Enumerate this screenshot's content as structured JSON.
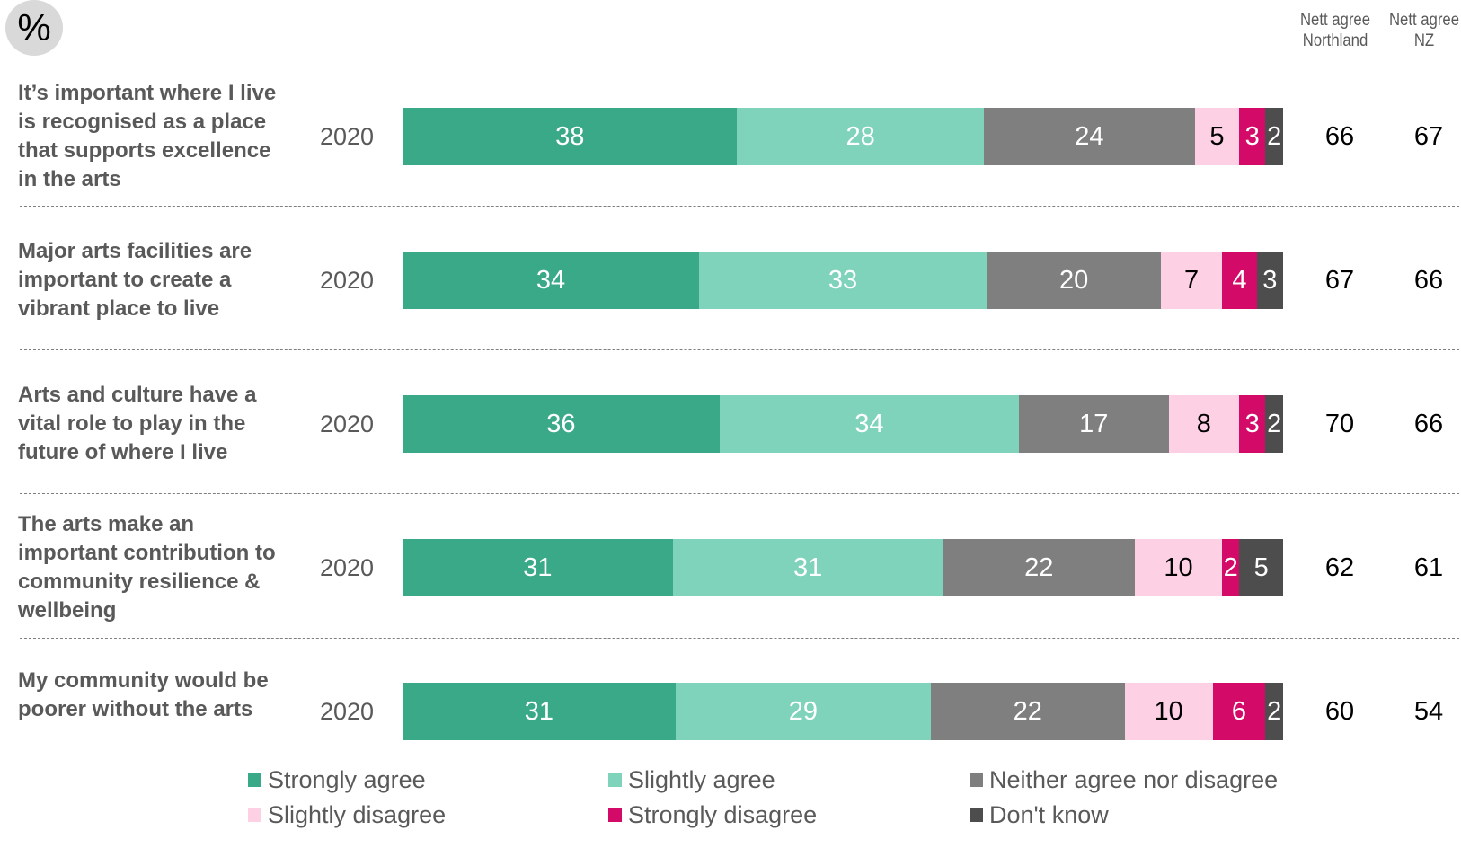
{
  "unit_badge": "%",
  "column_headers": {
    "northland": [
      "Nett agree",
      "Northland"
    ],
    "nz": [
      "Nett agree",
      "NZ"
    ]
  },
  "legend": [
    {
      "label": "Strongly agree",
      "color": "#3aa987"
    },
    {
      "label": "Slightly agree",
      "color": "#7fd3bb"
    },
    {
      "label": "Neither agree nor disagree",
      "color": "#7f7f7f"
    },
    {
      "label": "Slightly disagree",
      "color": "#fdd0e4"
    },
    {
      "label": "Strongly disagree",
      "color": "#d40a68"
    },
    {
      "label": "Don't know",
      "color": "#4d4d4d"
    }
  ],
  "chart_data": {
    "type": "bar",
    "orientation": "horizontal",
    "stacked": true,
    "unit": "%",
    "categories": [
      "It’s important where I live is recognised as a place that supports excellence in the arts",
      "Major arts facilities are important to create a vibrant place to live",
      "Arts and culture have a vital role to play in the future of where I live",
      "The arts make an important contribution to community resilience & wellbeing",
      "My community would be poorer without the arts"
    ],
    "year": "2020",
    "series": [
      {
        "name": "Strongly agree",
        "values": [
          38,
          34,
          36,
          31,
          31
        ]
      },
      {
        "name": "Slightly agree",
        "values": [
          28,
          33,
          34,
          31,
          29
        ]
      },
      {
        "name": "Neither agree nor disagree",
        "values": [
          24,
          20,
          17,
          22,
          22
        ]
      },
      {
        "name": "Slightly disagree",
        "values": [
          5,
          7,
          8,
          10,
          10
        ]
      },
      {
        "name": "Strongly disagree",
        "values": [
          3,
          4,
          3,
          2,
          6
        ]
      },
      {
        "name": "Don't know",
        "values": [
          2,
          3,
          2,
          5,
          2
        ]
      }
    ],
    "nett_agree_northland": [
      66,
      67,
      70,
      62,
      60
    ],
    "nett_agree_nz": [
      67,
      66,
      66,
      61,
      54
    ],
    "legend_position": "bottom"
  }
}
